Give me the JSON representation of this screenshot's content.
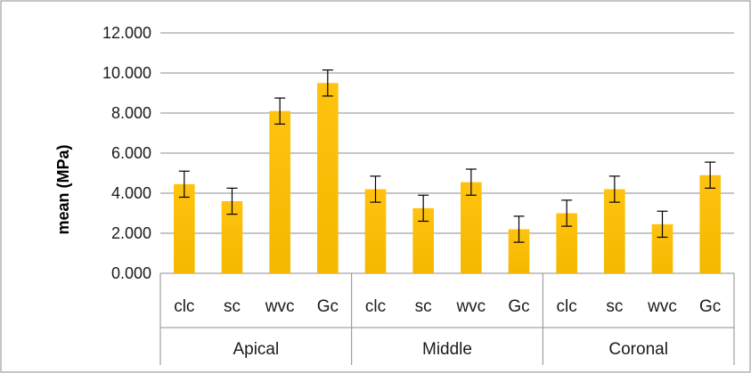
{
  "chart_data": {
    "type": "bar",
    "ylabel": "mean (MPa)",
    "ylim": [
      0,
      12
    ],
    "yticks": [
      "0.000",
      "2.000",
      "4.000",
      "6.000",
      "8.000",
      "10.000",
      "12.000"
    ],
    "grid": true,
    "groups": [
      {
        "name": "Apical",
        "categories": [
          "clc",
          "sc",
          "wvc",
          "Gc"
        ],
        "values": [
          4.45,
          3.6,
          8.1,
          9.5
        ],
        "errors": [
          0.65,
          0.65,
          0.65,
          0.65
        ]
      },
      {
        "name": "Middle",
        "categories": [
          "clc",
          "sc",
          "wvc",
          "Gc"
        ],
        "values": [
          4.2,
          3.25,
          4.55,
          2.2
        ],
        "errors": [
          0.65,
          0.65,
          0.65,
          0.65
        ]
      },
      {
        "name": "Coronal",
        "categories": [
          "clc",
          "sc",
          "wvc",
          "Gc"
        ],
        "values": [
          3.0,
          4.2,
          2.45,
          4.9
        ],
        "errors": [
          0.65,
          0.65,
          0.65,
          0.65
        ]
      }
    ],
    "colors": {
      "bar_top": "#FFC20E",
      "bar_bottom": "#F5B800",
      "grid": "#8c8c8c",
      "border": "#8c8c8c",
      "error": "#000000"
    }
  }
}
